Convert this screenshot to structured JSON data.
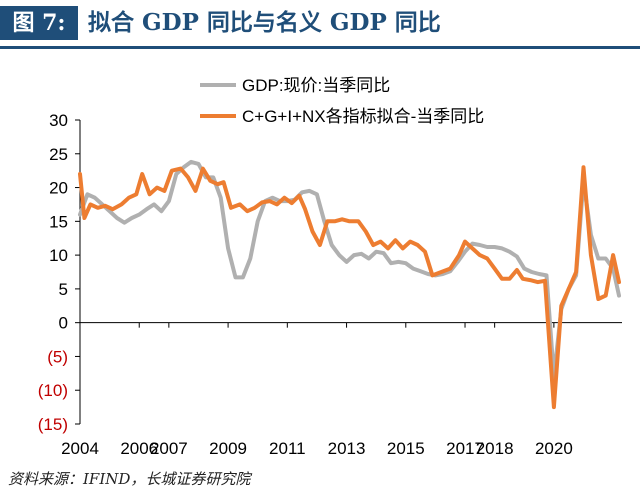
{
  "header": {
    "fig_label": "图 7:",
    "title": "拟合 GDP 同比与名义 GDP 同比"
  },
  "source": "资料来源：IFIND，长城证券研究院",
  "colors": {
    "header_blue": "#1f4e79",
    "gdp_series": "#b0b0b0",
    "fit_series": "#ed7d31",
    "negative_tick": "#c00000"
  },
  "chart_data": {
    "type": "line",
    "title": "",
    "xlabel": "",
    "ylabel": "",
    "ylim": [
      -15,
      30
    ],
    "xlim": [
      2004.0,
      2022.3
    ],
    "yticks": [
      30,
      25,
      20,
      15,
      10,
      5,
      0,
      -5,
      -10,
      -15
    ],
    "ytick_labels": [
      "30",
      "25",
      "20",
      "15",
      "10",
      "5",
      "0",
      "(5)",
      "(10)",
      "(15)"
    ],
    "xticks": [
      2004,
      2006,
      2007,
      2009,
      2011,
      2013,
      2015,
      2017,
      2018,
      2020
    ],
    "xtick_labels": [
      "2004",
      "2006",
      "2007",
      "2009",
      "2011",
      "2013",
      "2015",
      "2017",
      "2018",
      "2020"
    ],
    "legend_placement": "top-center",
    "grid": false,
    "series": [
      {
        "name": "GDP:现价:当季同比",
        "color": "#b0b0b0",
        "points": [
          [
            2004.0,
            16.0
          ],
          [
            2004.25,
            19.0
          ],
          [
            2004.5,
            18.5
          ],
          [
            2004.75,
            17.5
          ],
          [
            2005.0,
            16.5
          ],
          [
            2005.25,
            15.5
          ],
          [
            2005.5,
            14.8
          ],
          [
            2005.75,
            15.5
          ],
          [
            2006.0,
            16.0
          ],
          [
            2006.25,
            16.8
          ],
          [
            2006.5,
            17.5
          ],
          [
            2006.75,
            16.5
          ],
          [
            2007.0,
            18.0
          ],
          [
            2007.25,
            22.0
          ],
          [
            2007.5,
            23.0
          ],
          [
            2007.75,
            23.8
          ],
          [
            2008.0,
            23.5
          ],
          [
            2008.25,
            21.5
          ],
          [
            2008.5,
            21.5
          ],
          [
            2008.75,
            18.5
          ],
          [
            2009.0,
            11.0
          ],
          [
            2009.25,
            6.7
          ],
          [
            2009.5,
            6.7
          ],
          [
            2009.75,
            9.5
          ],
          [
            2010.0,
            15.0
          ],
          [
            2010.25,
            18.0
          ],
          [
            2010.5,
            18.5
          ],
          [
            2010.75,
            18.0
          ],
          [
            2011.0,
            18.0
          ],
          [
            2011.25,
            18.2
          ],
          [
            2011.5,
            19.3
          ],
          [
            2011.75,
            19.5
          ],
          [
            2012.0,
            19.0
          ],
          [
            2012.25,
            15.0
          ],
          [
            2012.5,
            11.5
          ],
          [
            2012.75,
            10.0
          ],
          [
            2013.0,
            9.0
          ],
          [
            2013.25,
            10.0
          ],
          [
            2013.5,
            10.2
          ],
          [
            2013.75,
            9.5
          ],
          [
            2014.0,
            10.5
          ],
          [
            2014.25,
            10.3
          ],
          [
            2014.5,
            8.8
          ],
          [
            2014.75,
            9.0
          ],
          [
            2015.0,
            8.8
          ],
          [
            2015.25,
            8.0
          ],
          [
            2015.5,
            7.6
          ],
          [
            2015.75,
            7.2
          ],
          [
            2016.0,
            7.0
          ],
          [
            2016.25,
            7.2
          ],
          [
            2016.5,
            7.6
          ],
          [
            2016.75,
            9.0
          ],
          [
            2017.0,
            10.5
          ],
          [
            2017.25,
            11.7
          ],
          [
            2017.5,
            11.5
          ],
          [
            2017.75,
            11.2
          ],
          [
            2018.0,
            11.2
          ],
          [
            2018.25,
            11.0
          ],
          [
            2018.5,
            10.5
          ],
          [
            2018.75,
            9.8
          ],
          [
            2019.0,
            8.0
          ],
          [
            2019.25,
            7.5
          ],
          [
            2019.5,
            7.2
          ],
          [
            2019.75,
            7.0
          ],
          [
            2020.0,
            -8.0
          ],
          [
            2020.25,
            2.0
          ],
          [
            2020.5,
            5.0
          ],
          [
            2020.75,
            7.0
          ],
          [
            2021.0,
            21.0
          ],
          [
            2021.25,
            13.0
          ],
          [
            2021.5,
            9.5
          ],
          [
            2021.75,
            9.5
          ],
          [
            2022.0,
            8.0
          ],
          [
            2022.2,
            4.0
          ]
        ]
      },
      {
        "name": "C+G+I+NX各指标拟合-当季同比",
        "color": "#ed7d31",
        "points": [
          [
            2004.0,
            22.0
          ],
          [
            2004.15,
            15.5
          ],
          [
            2004.35,
            17.5
          ],
          [
            2004.6,
            17.0
          ],
          [
            2004.85,
            17.3
          ],
          [
            2005.1,
            16.8
          ],
          [
            2005.4,
            17.5
          ],
          [
            2005.65,
            18.5
          ],
          [
            2005.9,
            19.0
          ],
          [
            2006.1,
            22.0
          ],
          [
            2006.35,
            19.0
          ],
          [
            2006.6,
            20.0
          ],
          [
            2006.85,
            19.5
          ],
          [
            2007.1,
            22.5
          ],
          [
            2007.4,
            22.8
          ],
          [
            2007.65,
            21.5
          ],
          [
            2007.9,
            19.5
          ],
          [
            2008.15,
            22.8
          ],
          [
            2008.4,
            21.0
          ],
          [
            2008.65,
            20.5
          ],
          [
            2008.85,
            20.8
          ],
          [
            2009.1,
            17.0
          ],
          [
            2009.4,
            17.5
          ],
          [
            2009.65,
            16.5
          ],
          [
            2009.9,
            17.0
          ],
          [
            2010.15,
            17.8
          ],
          [
            2010.4,
            18.0
          ],
          [
            2010.65,
            17.5
          ],
          [
            2010.9,
            18.5
          ],
          [
            2011.15,
            17.7
          ],
          [
            2011.4,
            18.8
          ],
          [
            2011.6,
            16.8
          ],
          [
            2011.85,
            13.5
          ],
          [
            2012.1,
            11.5
          ],
          [
            2012.35,
            15.0
          ],
          [
            2012.6,
            15.0
          ],
          [
            2012.85,
            15.3
          ],
          [
            2013.1,
            15.0
          ],
          [
            2013.4,
            15.0
          ],
          [
            2013.65,
            13.5
          ],
          [
            2013.9,
            11.5
          ],
          [
            2014.15,
            12.0
          ],
          [
            2014.4,
            11.0
          ],
          [
            2014.65,
            12.2
          ],
          [
            2014.9,
            11.0
          ],
          [
            2015.15,
            12.0
          ],
          [
            2015.4,
            11.5
          ],
          [
            2015.65,
            10.5
          ],
          [
            2015.9,
            7.0
          ],
          [
            2016.2,
            7.5
          ],
          [
            2016.5,
            8.0
          ],
          [
            2016.8,
            10.0
          ],
          [
            2017.0,
            12.0
          ],
          [
            2017.25,
            11.0
          ],
          [
            2017.5,
            10.0
          ],
          [
            2017.75,
            9.5
          ],
          [
            2018.0,
            8.0
          ],
          [
            2018.25,
            6.5
          ],
          [
            2018.5,
            6.5
          ],
          [
            2018.75,
            7.8
          ],
          [
            2018.95,
            6.5
          ],
          [
            2019.2,
            6.3
          ],
          [
            2019.45,
            6.0
          ],
          [
            2019.7,
            6.2
          ],
          [
            2020.0,
            -12.5
          ],
          [
            2020.25,
            2.5
          ],
          [
            2020.5,
            5.0
          ],
          [
            2020.75,
            7.5
          ],
          [
            2021.0,
            23.0
          ],
          [
            2021.25,
            10.0
          ],
          [
            2021.5,
            3.5
          ],
          [
            2021.75,
            4.0
          ],
          [
            2022.0,
            10.0
          ],
          [
            2022.2,
            6.0
          ]
        ]
      }
    ]
  }
}
